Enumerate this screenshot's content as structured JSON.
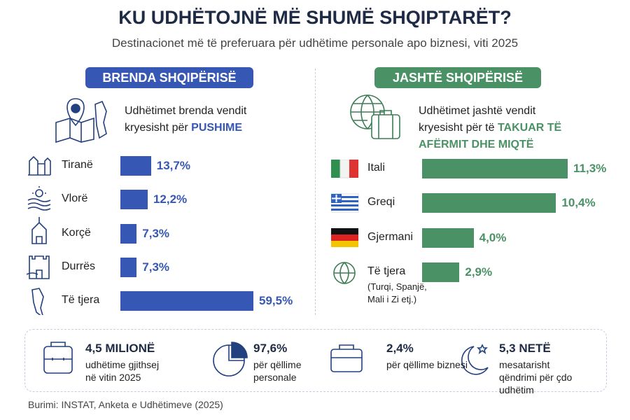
{
  "header": {
    "title": "KU UDHËTOJNË MË SHUMË SHQIPTARËT?",
    "subtitle": "Destinacionet më të preferuara për udhëtime personale apo biznesi, viti 2025"
  },
  "chart_data": [
    {
      "type": "bar",
      "orientation": "horizontal",
      "title": "BRENDA SHQIPËRISË",
      "description": "Udhëtimet brenda vendit kryesisht për",
      "highlight": "PUSHIME",
      "categories": [
        "Tiranë",
        "Vlorë",
        "Korçë",
        "Durrës",
        "Të tjera"
      ],
      "values": [
        13.7,
        12.2,
        7.3,
        7.3,
        59.5
      ],
      "value_labels": [
        "13,7%",
        "12,2%",
        "7,3%",
        "7,3%",
        "59,5%"
      ],
      "color": "#3657b3"
    },
    {
      "type": "bar",
      "orientation": "horizontal",
      "title": "JASHTË SHQIPËRISË",
      "description": "Udhëtimet jashtë vendit kryesisht për të",
      "highlight": "TAKUAR TË AFËRMIT DHE MIQTË",
      "categories": [
        "Itali",
        "Greqi",
        "Gjermani",
        "Të tjera"
      ],
      "category_note": "(Turqi, Spanjë, Mali i Zi etj.)",
      "values": [
        11.3,
        10.4,
        4.0,
        2.9
      ],
      "value_labels": [
        "11,3%",
        "10,4%",
        "4,0%",
        "2,9%"
      ],
      "color": "#4a9266"
    }
  ],
  "stats": [
    {
      "value": "4,5 MILIONË",
      "label": "udhëtime gjithsej në vitin 2025"
    },
    {
      "value": "97,6%",
      "label": "për qëllime personale"
    },
    {
      "value": "2,4%",
      "label": "për qëllime biznesi"
    },
    {
      "value": "5,3 NETË",
      "label": "mesatarisht qëndrimi për çdo udhëtim"
    }
  ],
  "source": "Burimi: INSTAT, Anketa e Udhëtimeve (2025)"
}
